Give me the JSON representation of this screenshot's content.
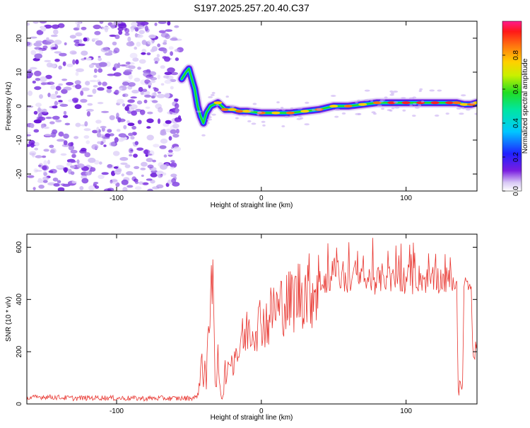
{
  "title": "S197.2025.257.20.40.C37",
  "chart_data": [
    {
      "type": "heatmap",
      "title": "S197.2025.257.20.40.C37",
      "xlabel": "Height of straight line (km)",
      "ylabel": "Frequency (Hz)",
      "xlim": [
        -162,
        149
      ],
      "ylim": [
        -25,
        25
      ],
      "xticks": [
        -100,
        0,
        100
      ],
      "xtick_labels": [
        "-100",
        "0",
        "100"
      ],
      "yticks": [
        -20,
        -10,
        0,
        10,
        20
      ],
      "ytick_labels": [
        "-20",
        "-10",
        "0",
        "10",
        "20"
      ],
      "noise_region_x": [
        -162,
        -56
      ],
      "ridge": [
        {
          "x": -55,
          "y": 8
        },
        {
          "x": -52,
          "y": 10
        },
        {
          "x": -50,
          "y": 11
        },
        {
          "x": -48,
          "y": 8
        },
        {
          "x": -46,
          "y": 5
        },
        {
          "x": -44,
          "y": 0
        },
        {
          "x": -42,
          "y": -3
        },
        {
          "x": -40,
          "y": -5
        },
        {
          "x": -38,
          "y": -2
        },
        {
          "x": -35,
          "y": 0
        },
        {
          "x": -30,
          "y": 1
        },
        {
          "x": -25,
          "y": -1
        },
        {
          "x": -20,
          "y": -1
        },
        {
          "x": -15,
          "y": -1.5
        },
        {
          "x": -10,
          "y": -1.5
        },
        {
          "x": 0,
          "y": -2
        },
        {
          "x": 10,
          "y": -2
        },
        {
          "x": 20,
          "y": -2
        },
        {
          "x": 30,
          "y": -1.5
        },
        {
          "x": 40,
          "y": -1
        },
        {
          "x": 50,
          "y": 0
        },
        {
          "x": 60,
          "y": 0
        },
        {
          "x": 70,
          "y": 0.5
        },
        {
          "x": 80,
          "y": 1
        },
        {
          "x": 90,
          "y": 1
        },
        {
          "x": 100,
          "y": 1
        },
        {
          "x": 110,
          "y": 1
        },
        {
          "x": 120,
          "y": 1
        },
        {
          "x": 130,
          "y": 1
        },
        {
          "x": 135,
          "y": 1
        },
        {
          "x": 140,
          "y": 0.5
        },
        {
          "x": 145,
          "y": 0.5
        },
        {
          "x": 149,
          "y": 1
        }
      ],
      "colorbar": {
        "label": "Normalized spectral amplitude",
        "ticks": [
          0.0,
          0.2,
          0.4,
          0.6,
          0.8
        ],
        "tick_labels": [
          "0.0",
          "0.2",
          "0.4",
          "0.6",
          "0.8"
        ],
        "range": [
          0,
          1
        ]
      }
    },
    {
      "type": "line",
      "xlabel": "Height of straight line (km)",
      "ylabel": "SNR (10 * v/v)",
      "xlim": [
        -162,
        149
      ],
      "ylim": [
        0,
        650
      ],
      "xticks": [
        -100,
        0,
        100
      ],
      "xtick_labels": [
        "-100",
        "0",
        "100"
      ],
      "yticks": [
        0,
        200,
        400,
        600
      ],
      "ytick_labels": [
        "0",
        "200",
        "400",
        "600"
      ],
      "series": [
        {
          "name": "SNR",
          "color": "#e8342e",
          "x": [
            -162,
            -150,
            -140,
            -130,
            -120,
            -110,
            -100,
            -90,
            -80,
            -70,
            -60,
            -50,
            -45,
            -43,
            -42,
            -41,
            -40,
            -39,
            -38,
            -37,
            -36,
            -35,
            -34,
            -33,
            -32,
            -31,
            -30,
            -29,
            -28,
            -27,
            -26,
            -25,
            -24,
            -23,
            -22,
            -21,
            -20,
            -18,
            -16,
            -14,
            -12,
            -10,
            -8,
            -6,
            -4,
            -2,
            0,
            2,
            5,
            8,
            10,
            12,
            15,
            18,
            20,
            25,
            30,
            35,
            40,
            45,
            50,
            55,
            60,
            65,
            70,
            75,
            80,
            85,
            90,
            95,
            100,
            105,
            110,
            115,
            120,
            125,
            130,
            132,
            134,
            135,
            136,
            137,
            138,
            139,
            140,
            141,
            142,
            143,
            144,
            145,
            146,
            147,
            148,
            149
          ],
          "values": [
            22,
            28,
            25,
            22,
            23,
            24,
            22,
            22,
            21,
            22,
            21,
            22,
            25,
            60,
            120,
            200,
            80,
            150,
            60,
            230,
            350,
            480,
            560,
            300,
            100,
            50,
            200,
            110,
            40,
            20,
            50,
            150,
            80,
            120,
            180,
            200,
            140,
            220,
            180,
            260,
            240,
            280,
            310,
            270,
            320,
            300,
            340,
            310,
            320,
            360,
            380,
            350,
            400,
            380,
            390,
            420,
            440,
            430,
            470,
            450,
            520,
            480,
            470,
            500,
            460,
            480,
            470,
            490,
            470,
            480,
            475,
            470,
            485,
            470,
            480,
            475,
            470,
            480,
            460,
            470,
            65,
            60,
            55,
            70,
            460,
            470,
            480,
            455,
            470,
            465,
            200,
            180,
            210,
            220
          ]
        }
      ]
    }
  ]
}
